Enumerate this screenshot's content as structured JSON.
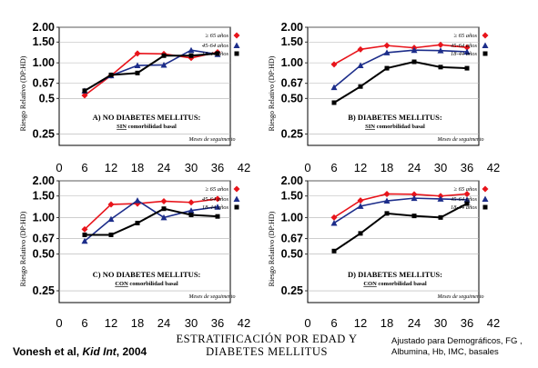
{
  "chart_data": [
    {
      "type": "line",
      "panel": "A",
      "title": "A) NO DIABETES MELLITUS:",
      "subtitle": "SIN comorbilidad basal",
      "subtitle_underlined": "SIN",
      "subtitle_rest": " comorbilidad basal",
      "xlabel": "Meses de seguimento",
      "ylabel": "Riesgo Relativo (DP:HD)",
      "yscale": "log",
      "ylim": [
        0.2,
        2.0
      ],
      "xlim": [
        0,
        42
      ],
      "yticks": [
        "2.00",
        "1.50",
        "1.00",
        "0.67",
        "0.5",
        "0.25"
      ],
      "ytick_values": [
        2.0,
        1.5,
        1.0,
        0.67,
        0.5,
        0.25
      ],
      "xticks": [
        "0",
        "6",
        "12",
        "18",
        "24",
        "30",
        "36",
        "42"
      ],
      "xtick_values": [
        0,
        6,
        12,
        18,
        24,
        30,
        36,
        42
      ],
      "grid": true,
      "series": [
        {
          "name": "≥ 65 años",
          "color": "#e8141b",
          "marker": "diamond",
          "x": [
            6,
            12,
            18,
            24,
            30,
            36
          ],
          "y": [
            0.53,
            0.78,
            1.2,
            1.19,
            1.1,
            1.23
          ]
        },
        {
          "name": "45-64 años",
          "color": "#1c2d8a",
          "marker": "triangle",
          "x": [
            6,
            12,
            18,
            24,
            30,
            36
          ],
          "y": [
            0.58,
            0.78,
            0.95,
            0.96,
            1.28,
            1.18
          ]
        },
        {
          "name": "18-44 años",
          "color": "#000000",
          "marker": "square",
          "x": [
            6,
            12,
            18,
            24,
            30,
            36
          ],
          "y": [
            0.58,
            0.79,
            0.82,
            1.15,
            1.15,
            1.2
          ]
        }
      ]
    },
    {
      "type": "line",
      "panel": "B",
      "title": "B) DIABETES MELLITUS:",
      "subtitle": "SIN comorbilidad basal",
      "subtitle_underlined": "SIN",
      "subtitle_rest": " comorbilidad basal",
      "xlabel": "Meses de seguimento",
      "ylabel": "Riesgo Relativo (DP:HD)",
      "yscale": "log",
      "ylim": [
        0.2,
        2.0
      ],
      "xlim": [
        0,
        42
      ],
      "yticks": [
        "2.00",
        "1.50",
        "1.00",
        "0.67",
        "0.50",
        "0.25"
      ],
      "ytick_values": [
        2.0,
        1.5,
        1.0,
        0.67,
        0.5,
        0.25
      ],
      "xticks": [
        "0",
        "6",
        "12",
        "18",
        "24",
        "30",
        "36",
        "42"
      ],
      "xtick_values": [
        0,
        6,
        12,
        18,
        24,
        30,
        36,
        42
      ],
      "grid": true,
      "series": [
        {
          "name": "≥ 65 años",
          "color": "#e8141b",
          "marker": "diamond",
          "x": [
            6,
            12,
            18,
            24,
            30,
            36
          ],
          "y": [
            0.97,
            1.3,
            1.4,
            1.34,
            1.42,
            1.35
          ]
        },
        {
          "name": "45-64 años",
          "color": "#1c2d8a",
          "marker": "triangle",
          "x": [
            6,
            12,
            18,
            24,
            30,
            36
          ],
          "y": [
            0.62,
            0.95,
            1.22,
            1.28,
            1.27,
            1.24
          ]
        },
        {
          "name": "18-44 años",
          "color": "#000000",
          "marker": "square",
          "x": [
            6,
            12,
            18,
            24,
            30,
            36
          ],
          "y": [
            0.46,
            0.63,
            0.9,
            1.02,
            0.92,
            0.9
          ]
        }
      ]
    },
    {
      "type": "line",
      "panel": "C",
      "title": "C) NO DIABETES MELLITUS:",
      "subtitle": "CON comorbilidad basal",
      "subtitle_underlined": "CON",
      "subtitle_rest": " comorbilidad basal",
      "xlabel": "Meses de seguimento",
      "ylabel": "Riesgo Relativo (DP:HD)",
      "yscale": "log",
      "ylim": [
        0.2,
        2.0
      ],
      "xlim": [
        0,
        42
      ],
      "yticks": [
        "2.00",
        "1.50",
        "1.00",
        "0.67",
        "0.50",
        "0.25"
      ],
      "ytick_values": [
        2.0,
        1.5,
        1.0,
        0.67,
        0.5,
        0.25
      ],
      "xticks": [
        "0",
        "6",
        "12",
        "18",
        "24",
        "30",
        "36",
        "42"
      ],
      "xtick_values": [
        0,
        6,
        12,
        18,
        24,
        30,
        36,
        42
      ],
      "grid": true,
      "series": [
        {
          "name": "≥ 65 años",
          "color": "#e8141b",
          "marker": "diamond",
          "x": [
            6,
            12,
            18,
            24,
            30,
            36
          ],
          "y": [
            0.8,
            1.28,
            1.3,
            1.36,
            1.33,
            1.42
          ]
        },
        {
          "name": "45-64 años",
          "color": "#1c2d8a",
          "marker": "triangle",
          "x": [
            6,
            12,
            18,
            24,
            30,
            36
          ],
          "y": [
            0.64,
            0.97,
            1.38,
            1.0,
            1.14,
            1.22
          ]
        },
        {
          "name": "18-44 años",
          "color": "#000000",
          "marker": "square",
          "x": [
            6,
            12,
            18,
            24,
            30,
            36
          ],
          "y": [
            0.72,
            0.72,
            0.9,
            1.18,
            1.05,
            1.02
          ]
        }
      ]
    },
    {
      "type": "line",
      "panel": "D",
      "title": "D) DIABETES MELLITUS:",
      "subtitle": "CON comorbilidad basal",
      "subtitle_underlined": "CON",
      "subtitle_rest": " comorbilidad basal",
      "xlabel": "Meses de seguimento",
      "ylabel": "Riesgo Relativo (DP:HD)",
      "yscale": "log",
      "ylim": [
        0.2,
        2.0
      ],
      "xlim": [
        0,
        42
      ],
      "yticks": [
        "2.00",
        "1.50",
        "1.00",
        "0.67",
        "0.50",
        "0.25"
      ],
      "ytick_values": [
        2.0,
        1.5,
        1.0,
        0.67,
        0.5,
        0.25
      ],
      "xticks": [
        "0",
        "6",
        "12",
        "18",
        "24",
        "30",
        "36",
        "42"
      ],
      "xtick_values": [
        0,
        6,
        12,
        18,
        24,
        30,
        36,
        42
      ],
      "grid": true,
      "series": [
        {
          "name": "≥ 65 años",
          "color": "#e8141b",
          "marker": "diamond",
          "x": [
            6,
            12,
            18,
            24,
            30,
            36
          ],
          "y": [
            1.0,
            1.38,
            1.56,
            1.55,
            1.5,
            1.56
          ]
        },
        {
          "name": "45-64 años",
          "color": "#1c2d8a",
          "marker": "triangle",
          "x": [
            6,
            12,
            18,
            24,
            30,
            36
          ],
          "y": [
            0.9,
            1.24,
            1.37,
            1.44,
            1.42,
            1.4
          ]
        },
        {
          "name": "18-44 años",
          "color": "#000000",
          "marker": "square",
          "x": [
            6,
            12,
            18,
            24,
            30,
            36
          ],
          "y": [
            0.53,
            0.74,
            1.08,
            1.03,
            1.0,
            1.3
          ]
        }
      ]
    }
  ],
  "footer": {
    "citation_prefix": "Vonesh et al, ",
    "citation_journal": "Kid Int",
    "citation_suffix": ", 2004",
    "title_line1": "ESTRATIFICACIÓN POR EDAD Y",
    "title_line2": "DIABETES MELLITUS",
    "note_line1": "Ajustado para Demográficos, FG ,",
    "note_line2": "Albumina, Hb, IMC, basales"
  }
}
